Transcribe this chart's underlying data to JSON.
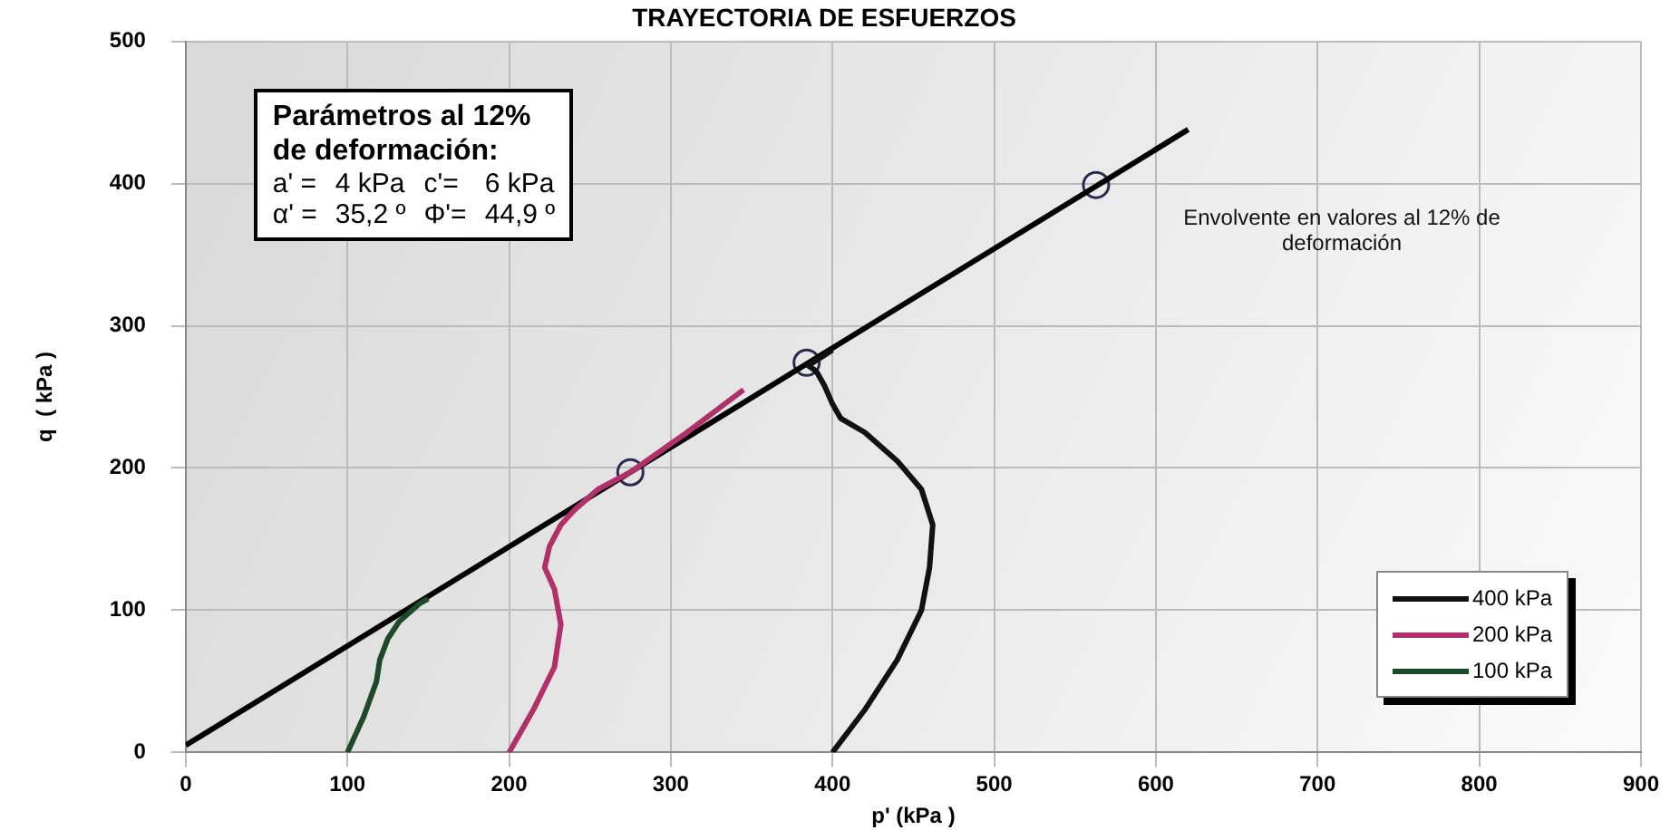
{
  "chart_data": {
    "type": "line",
    "title": "TRAYECTORIA DE ESFUERZOS",
    "xlabel": "p' (kPa )",
    "ylabel": "q  ( kPa )",
    "xlim": [
      0,
      900
    ],
    "xticks": [
      0,
      100,
      200,
      300,
      400,
      500,
      600,
      700,
      800,
      900
    ],
    "ylim": [
      0,
      500
    ],
    "yticks": [
      0,
      100,
      200,
      300,
      400,
      500
    ],
    "grid": true,
    "legend": "bottom right",
    "marker": "none",
    "line_style": "solid",
    "series": [
      {
        "name": "400 kPa",
        "color": "#111111",
        "x": [
          400,
          420,
          440,
          455,
          460,
          462,
          455,
          440,
          420,
          405,
          400,
          395,
          390,
          385,
          400
        ],
        "values": [
          0,
          30,
          65,
          100,
          130,
          160,
          185,
          205,
          225,
          235,
          245,
          258,
          268,
          272,
          283
        ]
      },
      {
        "name": "200 kPa",
        "color": "#b0306a",
        "x": [
          200,
          215,
          228,
          232,
          228,
          222,
          225,
          232,
          240,
          255,
          275,
          310,
          345
        ],
        "values": [
          0,
          30,
          60,
          90,
          115,
          130,
          145,
          160,
          170,
          185,
          197,
          225,
          255
        ]
      },
      {
        "name": "100 kPa",
        "color": "#1f4a2a",
        "x": [
          100,
          110,
          118,
          120,
          125,
          132,
          145,
          150
        ],
        "values": [
          0,
          25,
          50,
          65,
          80,
          92,
          105,
          108
        ]
      },
      {
        "type": "line",
        "color": "#000000",
        "x": [
          0,
          620
        ],
        "values": [
          5,
          438
        ]
      },
      {
        "type": "scatter",
        "marker": "circle",
        "color": "#2a2a50",
        "x": [
          275,
          384,
          563
        ],
        "values": [
          197,
          274,
          399
        ]
      }
    ],
    "annotations": [
      "Parámetros al 12% de deformación:",
      "a' =",
      "4 kPa",
      "c'=",
      "6 kPa",
      "α' =",
      "35,2 º",
      "Φ'=",
      "44,9 º",
      "Envolvente en valores al 12% de deformación"
    ]
  }
}
